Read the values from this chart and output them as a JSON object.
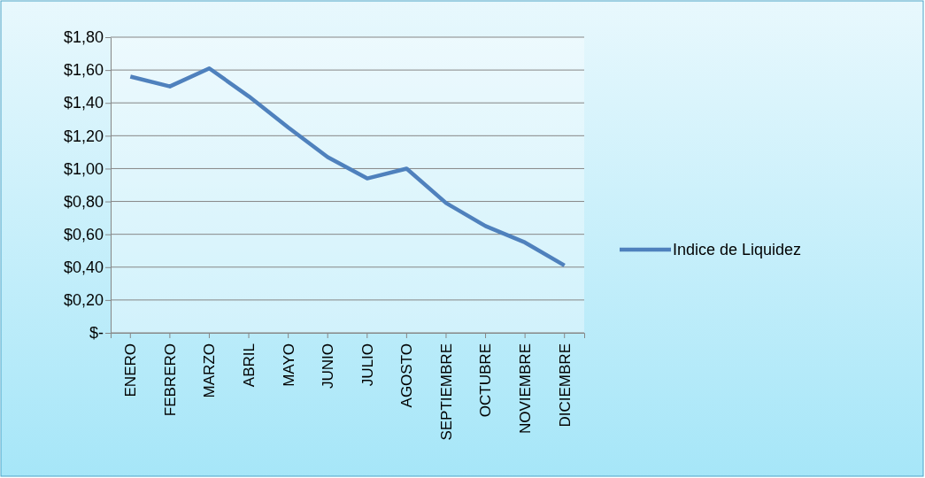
{
  "chart_data": {
    "type": "line",
    "categories": [
      "ENERO",
      "FEBRERO",
      "MARZO",
      "ABRIL",
      "MAYO",
      "JUNIO",
      "JULIO",
      "AGOSTO",
      "SEPTIEMBRE",
      "OCTUBRE",
      "NOVIEMBRE",
      "DICIEMBRE"
    ],
    "series": [
      {
        "name": "Indice de Liquidez",
        "color": "#4f81bd",
        "values": [
          1.56,
          1.5,
          1.61,
          1.44,
          1.25,
          1.07,
          0.94,
          1.0,
          0.79,
          0.65,
          0.55,
          0.41
        ]
      }
    ],
    "ylim": [
      0,
      1.8
    ],
    "yticks": [
      {
        "value": 0,
        "label": "$-"
      },
      {
        "value": 0.2,
        "label": "$0,20"
      },
      {
        "value": 0.4,
        "label": "$0,40"
      },
      {
        "value": 0.6,
        "label": "$0,60"
      },
      {
        "value": 0.8,
        "label": "$0,80"
      },
      {
        "value": 1,
        "label": "$1,00"
      },
      {
        "value": 1.2,
        "label": "$1,20"
      },
      {
        "value": 1.4,
        "label": "$1,40"
      },
      {
        "value": 1.6,
        "label": "$1,60"
      },
      {
        "value": 1.8,
        "label": "$1,80"
      }
    ],
    "grid": "y",
    "legend": "right",
    "marker": "none",
    "line_style": "solid"
  }
}
